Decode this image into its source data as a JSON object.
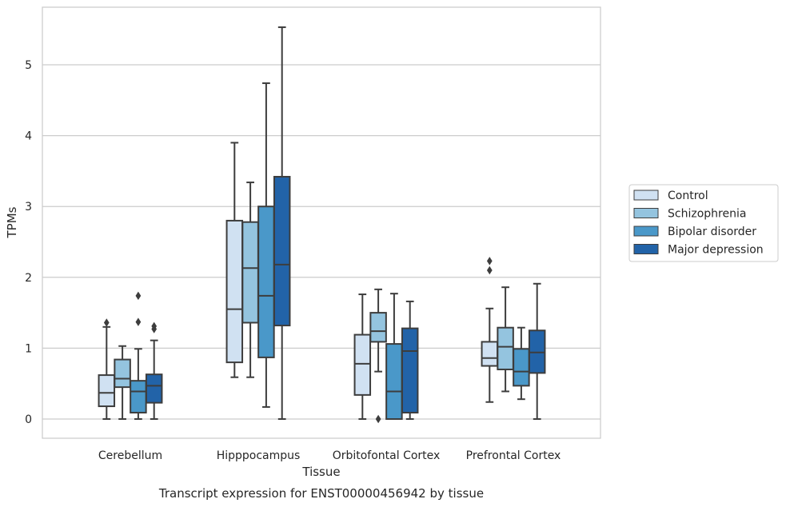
{
  "caption": "Transcript expression for ENST00000456942 by tissue",
  "chart_data": {
    "type": "box",
    "xlabel": "Tissue",
    "ylabel": "TPMs",
    "ylim": [
      -0.27,
      5.8
    ],
    "yticks": [
      0,
      1,
      2,
      3,
      4,
      5
    ],
    "grid": "horizontal",
    "legend_position": "right",
    "categories": [
      "Cerebellum",
      "Hipppocampus",
      "Orbitofontal Cortex",
      "Prefrontal Cortex"
    ],
    "series": [
      {
        "name": "Control",
        "color": "#d0e1f2",
        "boxes": [
          {
            "whislo": 0.0,
            "q1": 0.18,
            "med": 0.37,
            "q3": 0.62,
            "whishi": 1.3,
            "fliers": [
              1.36
            ]
          },
          {
            "whislo": 0.59,
            "q1": 0.8,
            "med": 1.55,
            "q3": 2.8,
            "whishi": 3.9,
            "fliers": []
          },
          {
            "whislo": 0.0,
            "q1": 0.34,
            "med": 0.78,
            "q3": 1.19,
            "whishi": 1.76,
            "fliers": []
          },
          {
            "whislo": 0.24,
            "q1": 0.75,
            "med": 0.86,
            "q3": 1.09,
            "whishi": 1.56,
            "fliers": [
              2.1,
              2.23
            ]
          }
        ]
      },
      {
        "name": "Schizophrenia",
        "color": "#94c4df",
        "boxes": [
          {
            "whislo": 0.0,
            "q1": 0.45,
            "med": 0.57,
            "q3": 0.84,
            "whishi": 1.03,
            "fliers": []
          },
          {
            "whislo": 0.59,
            "q1": 1.36,
            "med": 2.13,
            "q3": 2.78,
            "whishi": 3.34,
            "fliers": []
          },
          {
            "whislo": 0.67,
            "q1": 1.09,
            "med": 1.24,
            "q3": 1.5,
            "whishi": 1.83,
            "fliers": [
              0.0
            ]
          },
          {
            "whislo": 0.39,
            "q1": 0.7,
            "med": 1.02,
            "q3": 1.29,
            "whishi": 1.86,
            "fliers": []
          }
        ]
      },
      {
        "name": "Bipolar disorder",
        "color": "#4a98c9",
        "boxes": [
          {
            "whislo": 0.0,
            "q1": 0.09,
            "med": 0.39,
            "q3": 0.54,
            "whishi": 0.99,
            "fliers": [
              1.37,
              1.74
            ]
          },
          {
            "whislo": 0.17,
            "q1": 0.87,
            "med": 1.74,
            "q3": 3.0,
            "whishi": 4.74,
            "fliers": []
          },
          {
            "whislo": 0.0,
            "q1": 0.0,
            "med": 0.39,
            "q3": 1.06,
            "whishi": 1.77,
            "fliers": []
          },
          {
            "whislo": 0.28,
            "q1": 0.47,
            "med": 0.67,
            "q3": 0.99,
            "whishi": 1.29,
            "fliers": []
          }
        ]
      },
      {
        "name": "Major depression",
        "color": "#2263a8",
        "boxes": [
          {
            "whislo": 0.0,
            "q1": 0.23,
            "med": 0.47,
            "q3": 0.63,
            "whishi": 1.11,
            "fliers": [
              1.27,
              1.31
            ]
          },
          {
            "whislo": 0.0,
            "q1": 1.32,
            "med": 2.18,
            "q3": 3.42,
            "whishi": 5.53,
            "fliers": []
          },
          {
            "whislo": 0.0,
            "q1": 0.09,
            "med": 0.96,
            "q3": 1.28,
            "whishi": 1.66,
            "fliers": []
          },
          {
            "whislo": 0.0,
            "q1": 0.65,
            "med": 0.94,
            "q3": 1.25,
            "whishi": 1.91,
            "fliers": []
          }
        ]
      }
    ]
  }
}
